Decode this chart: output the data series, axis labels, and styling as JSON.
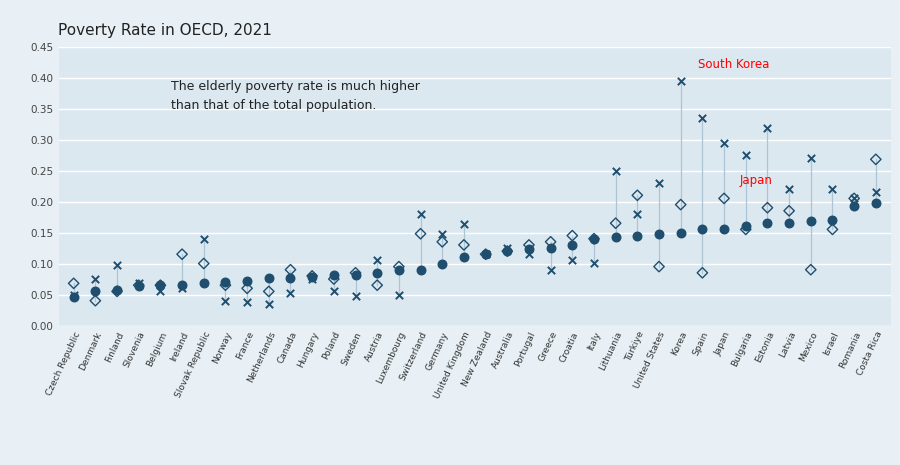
{
  "title": "Poverty Rate in OECD, 2021",
  "annotation": "The elderly poverty rate is much higher\nthan that of the total population.",
  "background_color": "#e8f0f5",
  "plot_bg_color": "#dce8f0",
  "label_area_color": "#e8f0f5",
  "marker_color": "#1f4e6e",
  "grid_color": "#ffffff",
  "ylim": [
    0.0,
    0.45
  ],
  "yticks": [
    0.0,
    0.05,
    0.1,
    0.15,
    0.2,
    0.25,
    0.3,
    0.35,
    0.4,
    0.45
  ],
  "countries": [
    "Czech Republic",
    "Denmark",
    "Finland",
    "Slovenia",
    "Belgium",
    "Ireland",
    "Slovak Republic",
    "Norway",
    "France",
    "Netherlands",
    "Canada",
    "Hungary",
    "Poland",
    "Sweden",
    "Austria",
    "Luxembourg",
    "Switzerland",
    "Germany",
    "United Kingdom",
    "New Zealand",
    "Australia",
    "Portugal",
    "Greece",
    "Croatia",
    "Italy",
    "Lithuania",
    "Türkiye",
    "United States",
    "Korea",
    "Spain",
    "Japan",
    "Bulgaria",
    "Estonia",
    "Latvia",
    "Mexico",
    "Israel",
    "Romania",
    "Costa Rica"
  ],
  "total": [
    0.046,
    0.056,
    0.057,
    0.063,
    0.065,
    0.066,
    0.069,
    0.07,
    0.072,
    0.076,
    0.077,
    0.079,
    0.081,
    0.082,
    0.084,
    0.09,
    0.09,
    0.1,
    0.11,
    0.115,
    0.12,
    0.123,
    0.125,
    0.13,
    0.14,
    0.143,
    0.145,
    0.147,
    0.15,
    0.155,
    0.155,
    0.16,
    0.165,
    0.165,
    0.168,
    0.17,
    0.192,
    0.197
  ],
  "youth": [
    0.068,
    0.04,
    0.055,
    0.065,
    0.065,
    0.115,
    0.1,
    0.065,
    0.06,
    0.055,
    0.09,
    0.08,
    0.075,
    0.085,
    0.065,
    0.095,
    0.148,
    0.135,
    0.13,
    0.115,
    0.12,
    0.13,
    0.135,
    0.145,
    0.14,
    0.165,
    0.21,
    0.095,
    0.195,
    0.085,
    0.205,
    0.155,
    0.19,
    0.185,
    0.09,
    0.155,
    0.205,
    0.268
  ],
  "elderly": [
    0.05,
    0.075,
    0.097,
    0.068,
    0.055,
    0.06,
    0.14,
    0.04,
    0.038,
    0.035,
    0.052,
    0.075,
    0.055,
    0.048,
    0.105,
    0.05,
    0.18,
    0.148,
    0.163,
    0.115,
    0.125,
    0.115,
    0.09,
    0.105,
    0.101,
    0.25,
    0.18,
    0.23,
    0.395,
    0.335,
    0.295,
    0.275,
    0.318,
    0.22,
    0.27,
    0.22,
    0.205,
    0.215
  ],
  "south_korea_idx": 28,
  "japan_idx": 30
}
